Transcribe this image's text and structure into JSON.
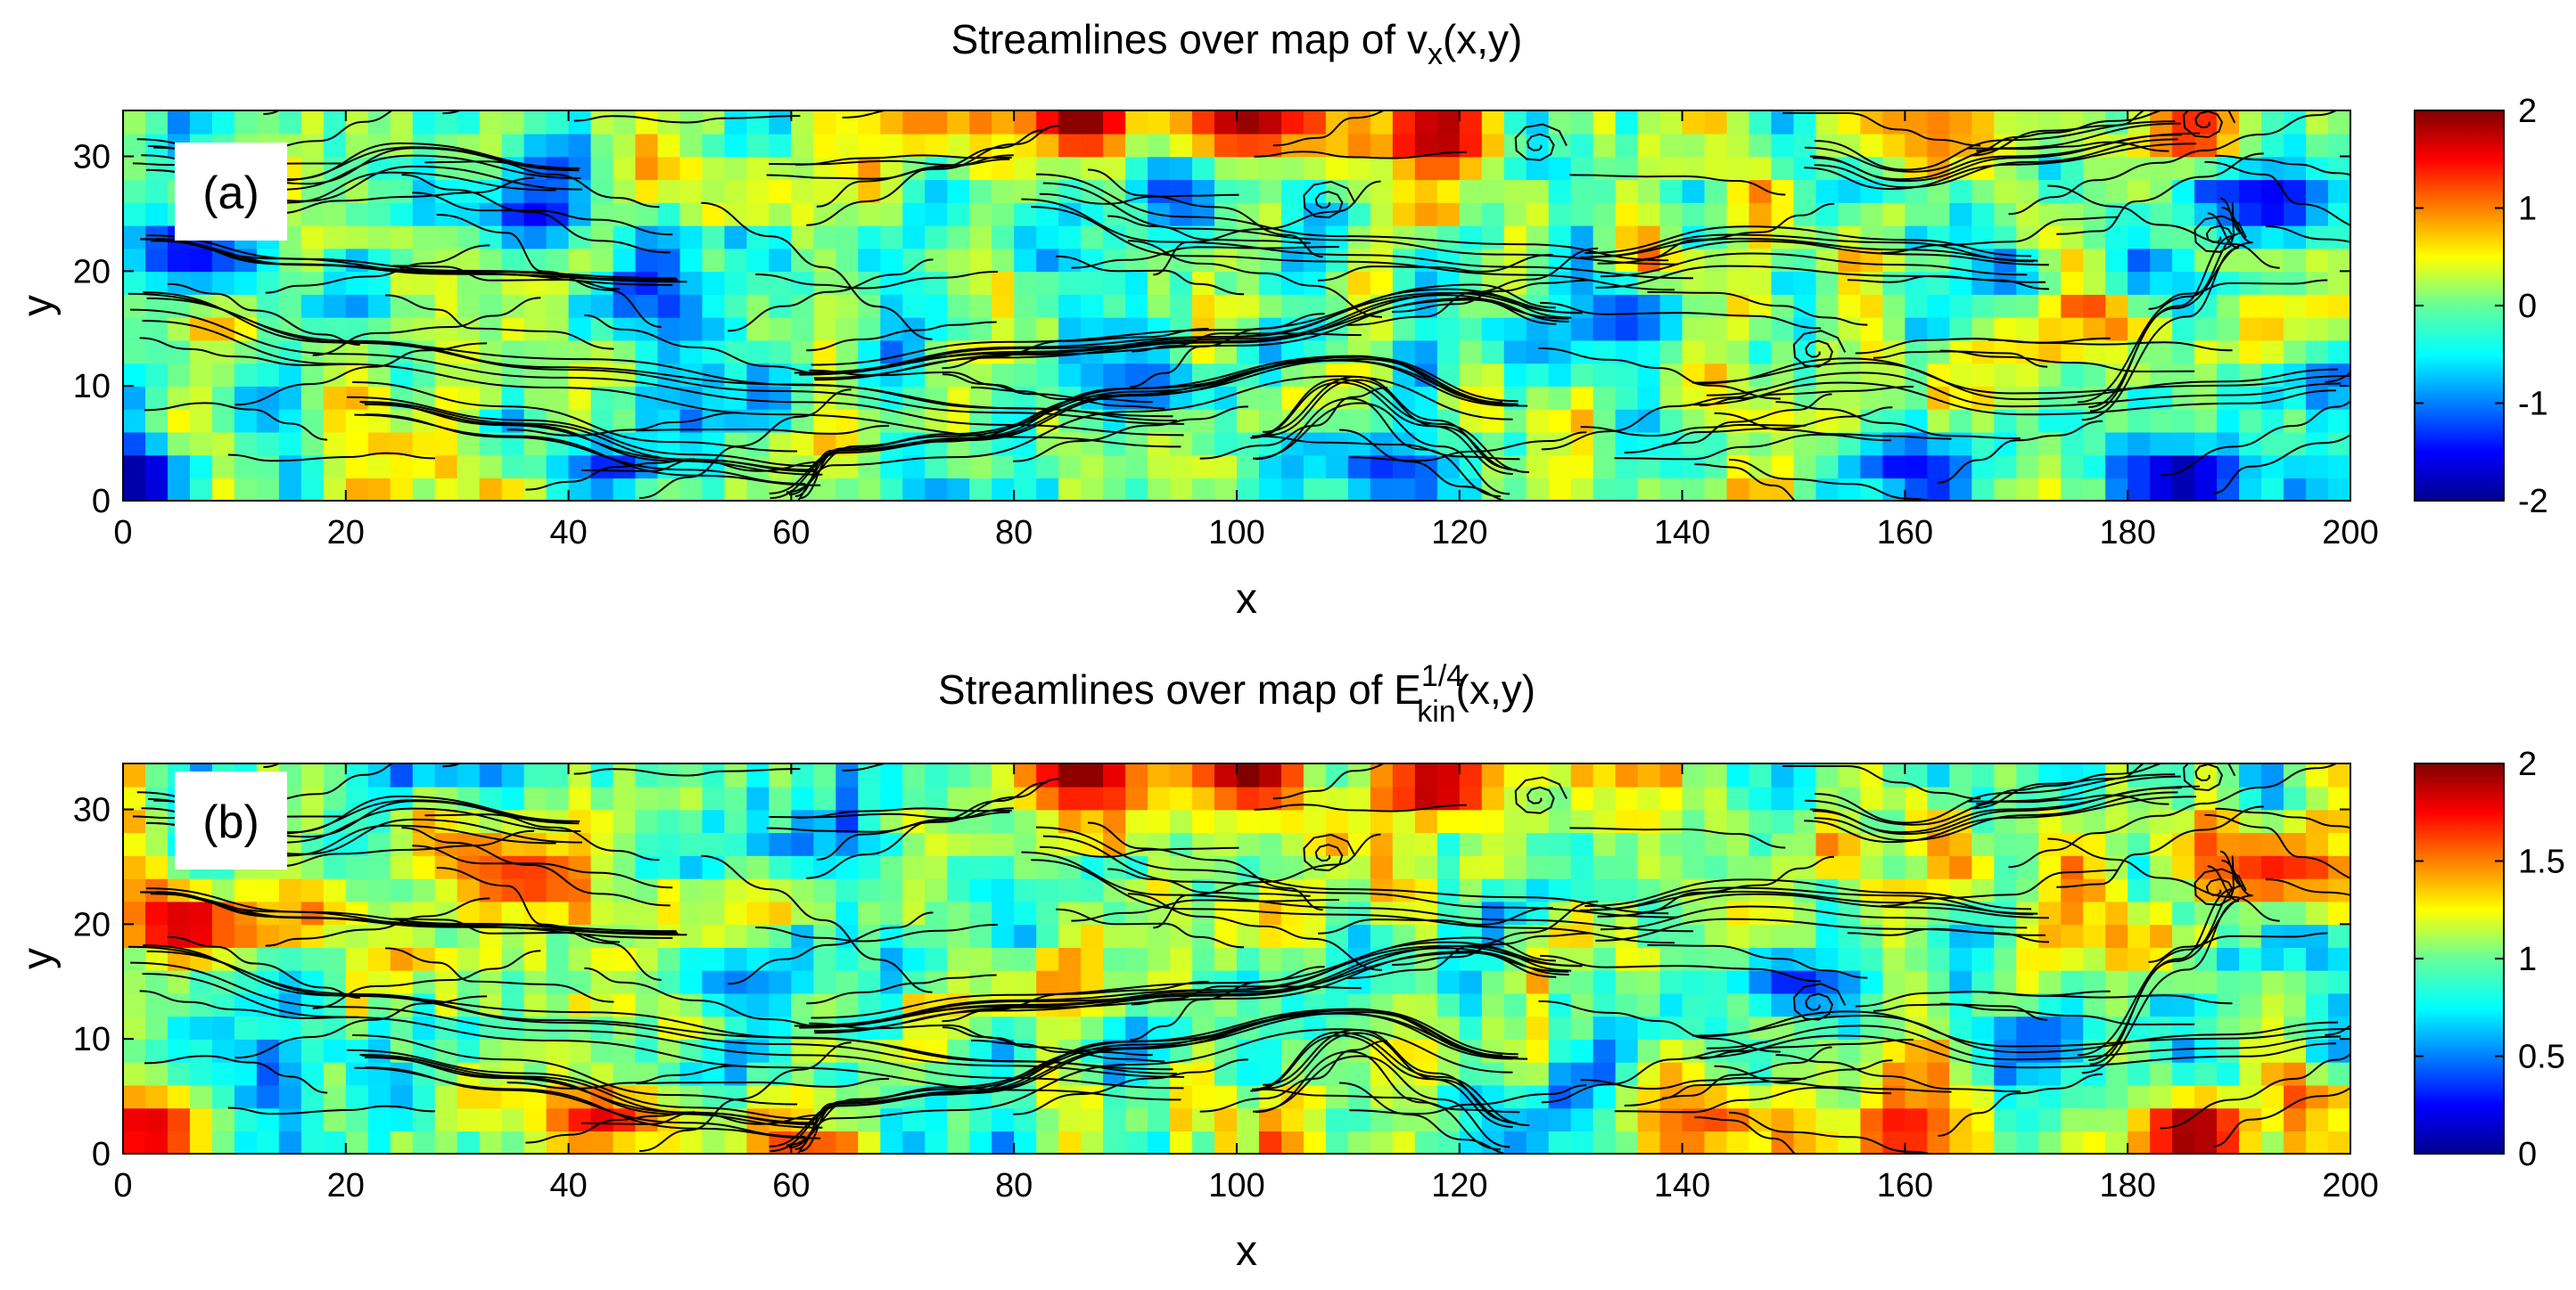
{
  "chart_data": [
    {
      "type": "heatmap",
      "panel_label": "(a)",
      "title_prefix": "Streamlines over map of ",
      "title_symbol": "v",
      "title_subscript": "x",
      "title_suffix": "(x,y)",
      "xlabel": "x",
      "ylabel": "y",
      "xlim": [
        0,
        200
      ],
      "ylim": [
        0,
        34
      ],
      "xticks": [
        0,
        20,
        40,
        60,
        80,
        100,
        120,
        140,
        160,
        180,
        200
      ],
      "yticks": [
        0,
        10,
        20,
        30
      ],
      "colorbar": {
        "min": -2,
        "max": 2,
        "ticks": [
          2,
          1,
          0,
          -1,
          -2
        ],
        "colormap": "jet"
      },
      "seed": 7,
      "red_spots": [
        {
          "x": 86,
          "y": 33,
          "v": 2.0
        },
        {
          "x": 101,
          "y": 33,
          "v": 1.9
        },
        {
          "x": 118,
          "y": 32,
          "v": 2.0
        },
        {
          "x": 186,
          "y": 32,
          "v": 1.5
        },
        {
          "x": 72,
          "y": 33,
          "v": 1.0
        },
        {
          "x": 160,
          "y": 33,
          "v": 0.9
        }
      ],
      "blue_spots": [
        {
          "x": 6,
          "y": 22,
          "v": -1.6
        },
        {
          "x": 1,
          "y": 2,
          "v": -2.0
        },
        {
          "x": 37,
          "y": 25,
          "v": -1.5
        },
        {
          "x": 44,
          "y": 3,
          "v": -1.4
        },
        {
          "x": 193,
          "y": 26,
          "v": -1.7
        },
        {
          "x": 185,
          "y": 2,
          "v": -2.0
        },
        {
          "x": 160,
          "y": 3,
          "v": -1.5
        },
        {
          "x": 135,
          "y": 16,
          "v": -1.3
        },
        {
          "x": 113,
          "y": 3,
          "v": -1.3
        },
        {
          "x": 92,
          "y": 10,
          "v": -1.2
        }
      ]
    },
    {
      "type": "heatmap",
      "panel_label": "(b)",
      "title_prefix": "Streamlines over map of ",
      "title_symbol": "E",
      "title_subscript": "kin",
      "title_superscript": "1/4",
      "title_suffix": "(x,y)",
      "xlabel": "x",
      "ylabel": "y",
      "xlim": [
        0,
        200
      ],
      "ylim": [
        0,
        34
      ],
      "xticks": [
        0,
        20,
        40,
        60,
        80,
        100,
        120,
        140,
        160,
        180,
        200
      ],
      "yticks": [
        0,
        10,
        20,
        30
      ],
      "colorbar": {
        "min": 0,
        "max": 2,
        "ticks": [
          2,
          1.5,
          1,
          0.5,
          0
        ],
        "colormap": "jet"
      },
      "seed": 19,
      "red_spots": [
        {
          "x": 6,
          "y": 20,
          "v": 1.9
        },
        {
          "x": 86,
          "y": 33,
          "v": 2.0
        },
        {
          "x": 101,
          "y": 33,
          "v": 2.0
        },
        {
          "x": 118,
          "y": 32,
          "v": 2.0
        },
        {
          "x": 2,
          "y": 2,
          "v": 1.9
        },
        {
          "x": 186,
          "y": 2,
          "v": 2.0
        },
        {
          "x": 160,
          "y": 2,
          "v": 1.8
        },
        {
          "x": 43,
          "y": 3,
          "v": 1.8
        },
        {
          "x": 193,
          "y": 25,
          "v": 1.7
        },
        {
          "x": 36,
          "y": 24,
          "v": 1.7
        },
        {
          "x": 143,
          "y": 3,
          "v": 1.6
        }
      ],
      "blue_spots": [
        {
          "x": 150,
          "y": 15,
          "v": 0.3
        },
        {
          "x": 172,
          "y": 10,
          "v": 0.4
        },
        {
          "x": 55,
          "y": 15,
          "v": 0.5
        }
      ]
    }
  ]
}
